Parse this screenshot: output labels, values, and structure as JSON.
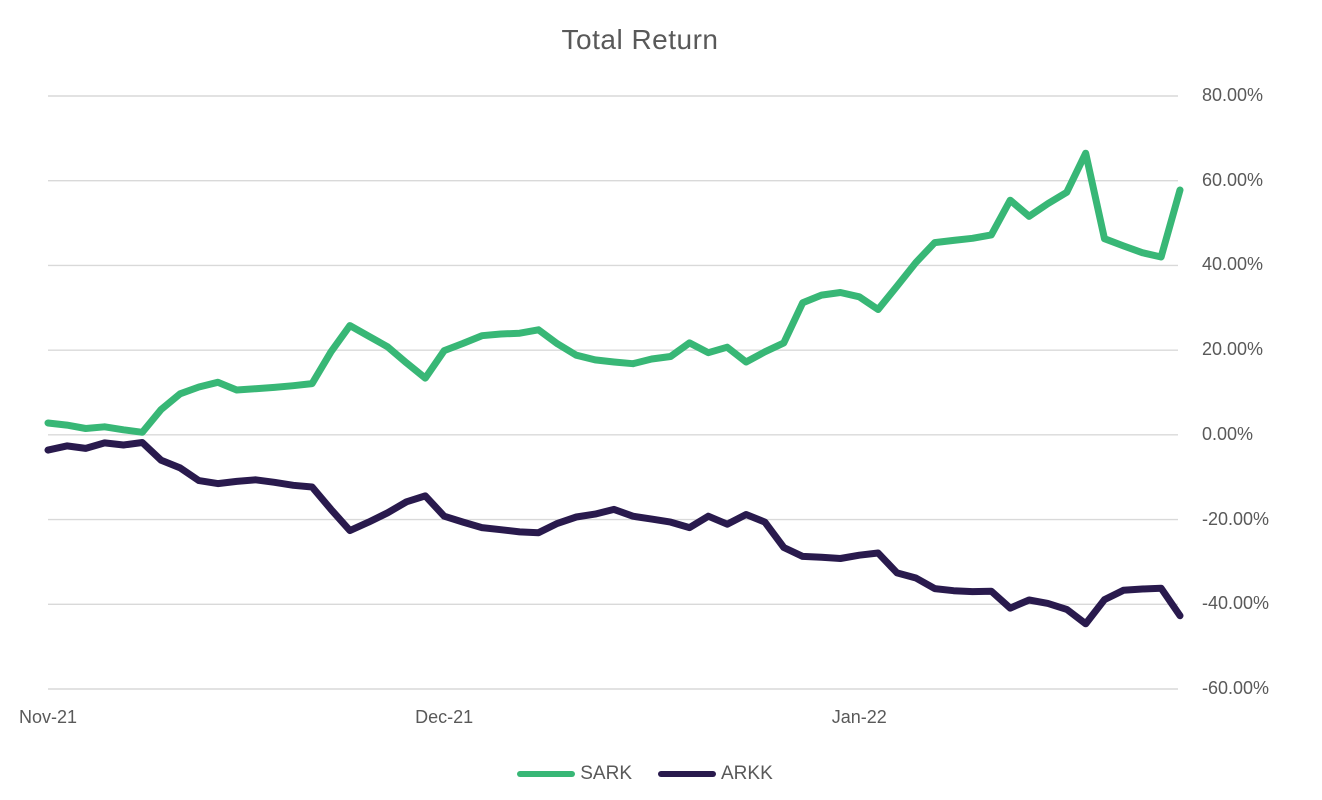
{
  "title": "Total Return",
  "colors": {
    "sark_line": "#38b776",
    "arkk_line": "#291a4d",
    "gridline": "#d9d9d9",
    "text": "#595959",
    "background": "#ffffff"
  },
  "legend": {
    "items": [
      {
        "label": "SARK",
        "color": "#38b776"
      },
      {
        "label": "ARKK",
        "color": "#291a4d"
      }
    ]
  },
  "chart_data": {
    "type": "line",
    "title": "Total Return",
    "xlabel": "",
    "ylabel": "",
    "grid": "horizontal",
    "legend_position": "bottom",
    "y_axis": {
      "side": "right",
      "min": -60,
      "max": 80,
      "tick_values": [
        80,
        60,
        40,
        20,
        0,
        -20,
        -40,
        -60
      ],
      "tick_labels": [
        "80.00%",
        "60.00%",
        "40.00%",
        "20.00%",
        "0.00%",
        "-20.00%",
        "-40.00%",
        "-60.00%"
      ]
    },
    "x_axis": {
      "unit": "trading days (Nov 2021 - Jan 2022)",
      "tick_labels": [
        "Nov-21",
        "Dec-21",
        "Jan-22"
      ],
      "tick_indices": [
        0,
        21,
        43
      ]
    },
    "series": [
      {
        "name": "SARK",
        "color": "#38b776",
        "unit": "%",
        "values": [
          2.8,
          2.3,
          1.5,
          1.9,
          1.2,
          0.6,
          6.0,
          9.7,
          11.3,
          12.4,
          10.6,
          10.9,
          11.2,
          11.6,
          12.1,
          19.6,
          25.8,
          23.3,
          20.8,
          17.0,
          13.4,
          19.9,
          21.6,
          23.4,
          23.8,
          24.0,
          24.8,
          21.5,
          18.8,
          17.7,
          17.2,
          16.8,
          17.9,
          18.5,
          21.7,
          19.4,
          20.7,
          17.2,
          19.6,
          21.7,
          31.2,
          33.0,
          33.6,
          32.6,
          29.6,
          35.1,
          40.7,
          45.4,
          45.9,
          46.4,
          47.2,
          55.4,
          51.6,
          54.6,
          57.3,
          66.5,
          46.3,
          44.6,
          43.0,
          42.0,
          57.8
        ]
      },
      {
        "name": "ARKK",
        "color": "#291a4d",
        "unit": "%",
        "values": [
          -3.6,
          -2.6,
          -3.2,
          -1.9,
          -2.4,
          -1.8,
          -6.0,
          -7.8,
          -10.8,
          -11.5,
          -11.0,
          -10.6,
          -11.2,
          -11.9,
          -12.3,
          -17.6,
          -22.6,
          -20.6,
          -18.4,
          -15.8,
          -14.4,
          -19.2,
          -20.6,
          -21.9,
          -22.4,
          -22.9,
          -23.1,
          -20.9,
          -19.4,
          -18.7,
          -17.6,
          -19.2,
          -19.9,
          -20.6,
          -21.9,
          -19.2,
          -21.1,
          -18.8,
          -20.6,
          -26.6,
          -28.7,
          -28.9,
          -29.2,
          -28.4,
          -27.9,
          -32.6,
          -33.8,
          -36.3,
          -36.8,
          -37.0,
          -36.9,
          -40.9,
          -39.0,
          -39.8,
          -41.2,
          -44.6,
          -38.9,
          -36.7,
          -36.4,
          -36.2,
          -42.7
        ]
      }
    ]
  }
}
